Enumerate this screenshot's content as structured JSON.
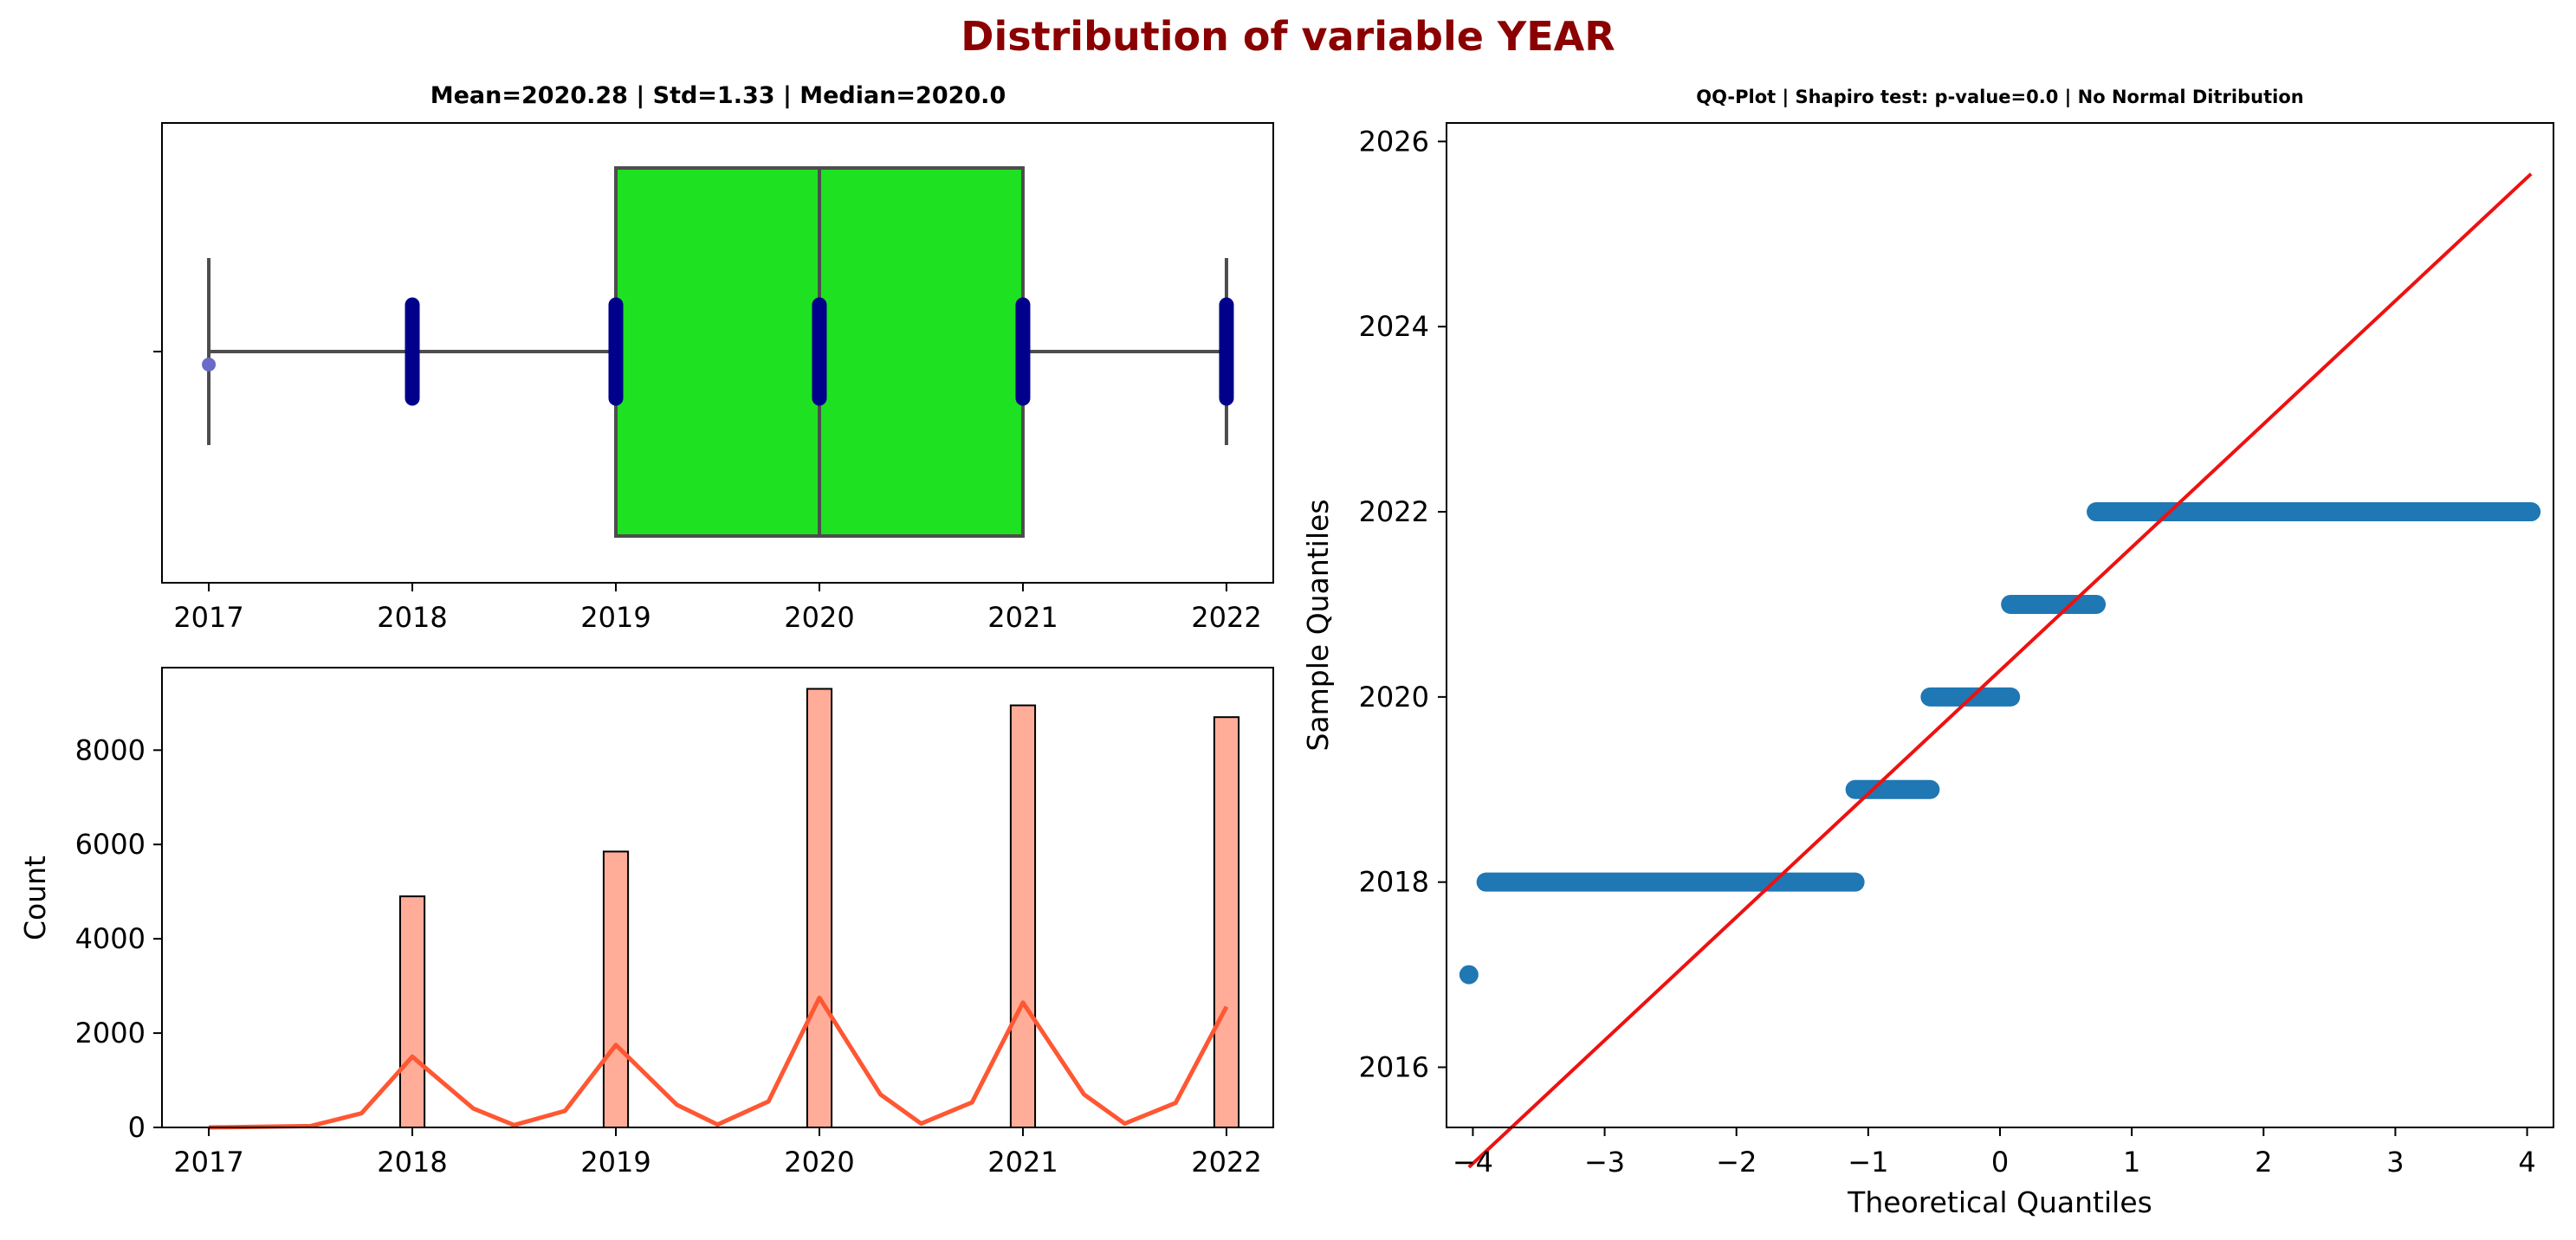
{
  "suptitle": "Distribution of variable YEAR",
  "chart_data": [
    {
      "type": "box",
      "title": "Mean=2020.28 | Std=1.33 | Median=2020.0",
      "xlim": [
        2016.77,
        2022.23
      ],
      "xticks": [
        2017,
        2018,
        2019,
        2020,
        2021,
        2022
      ],
      "tick_labels": [
        "2017",
        "2018",
        "2019",
        "2020",
        "2021",
        "2022"
      ],
      "box": {
        "q1": 2019,
        "median": 2020,
        "q3": 2021,
        "whisker_low": 2017,
        "whisker_high": 2022
      },
      "outliers": [
        2017
      ],
      "strip_points": [
        2018,
        2019,
        2020,
        2021,
        2022
      ],
      "colors": {
        "box": "#1ee221",
        "box_edge": "#4d4d4d",
        "strip": "#00008b",
        "outlier": "#6a6ac8"
      }
    },
    {
      "type": "bar",
      "title": "",
      "ylabel": "Count",
      "xlim": [
        2016.77,
        2022.23
      ],
      "ylim": [
        0,
        9750
      ],
      "xticks": [
        2017,
        2018,
        2019,
        2020,
        2021,
        2022
      ],
      "tick_labels_x": [
        "2017",
        "2018",
        "2019",
        "2020",
        "2021",
        "2022"
      ],
      "yticks": [
        0,
        2000,
        4000,
        6000,
        8000
      ],
      "tick_labels_y": [
        "0",
        "2000",
        "4000",
        "6000",
        "8000"
      ],
      "categories": [
        2018,
        2019,
        2020,
        2021,
        2022
      ],
      "values": [
        4900,
        5850,
        9300,
        8950,
        8700
      ],
      "kde": {
        "x": [
          2017.0,
          2017.5,
          2017.75,
          2018.0,
          2018.3,
          2018.5,
          2018.75,
          2019.0,
          2019.3,
          2019.5,
          2019.75,
          2020.0,
          2020.3,
          2020.5,
          2020.75,
          2021.0,
          2021.3,
          2021.5,
          2021.75,
          2022.0
        ],
        "y": [
          0,
          30,
          300,
          1500,
          400,
          50,
          350,
          1750,
          480,
          60,
          550,
          2750,
          700,
          80,
          530,
          2650,
          700,
          80,
          520,
          2560
        ]
      },
      "colors": {
        "bar": "#ffad98",
        "bar_edge": "#000000",
        "kde": "#ff5733"
      }
    },
    {
      "type": "scatter",
      "title": "QQ-Plot | Shapiro test: p-value=0.0 | No Normal Ditribution",
      "xlabel": "Theoretical Quantiles",
      "ylabel": "Sample Quantiles",
      "xlim": [
        -4.2,
        4.2
      ],
      "ylim": [
        2015.35,
        2026.2
      ],
      "xticks": [
        -4,
        -3,
        -2,
        -1,
        0,
        1,
        2,
        3,
        4
      ],
      "tick_labels_x": [
        "−4",
        "−3",
        "−2",
        "−1",
        "0",
        "1",
        "2",
        "3",
        "4"
      ],
      "yticks": [
        2016,
        2018,
        2020,
        2022,
        2024,
        2026
      ],
      "tick_labels_y": [
        "2016",
        "2018",
        "2020",
        "2022",
        "2024",
        "2026"
      ],
      "steps": [
        {
          "y": 2017,
          "x_start": -4.03,
          "x_end": -4.03
        },
        {
          "y": 2018,
          "x_start": -3.9,
          "x_end": -1.1
        },
        {
          "y": 2019,
          "x_start": -1.1,
          "x_end": -0.53
        },
        {
          "y": 2020,
          "x_start": -0.53,
          "x_end": 0.08
        },
        {
          "y": 2021,
          "x_start": 0.08,
          "x_end": 0.73
        },
        {
          "y": 2022,
          "x_start": 0.73,
          "x_end": 4.03
        }
      ],
      "fit_line": {
        "x": [
          -4.03,
          4.03
        ],
        "y": [
          2014.92,
          2025.65
        ]
      },
      "colors": {
        "points": "#1f77b4",
        "line": "#ee1111"
      }
    }
  ]
}
